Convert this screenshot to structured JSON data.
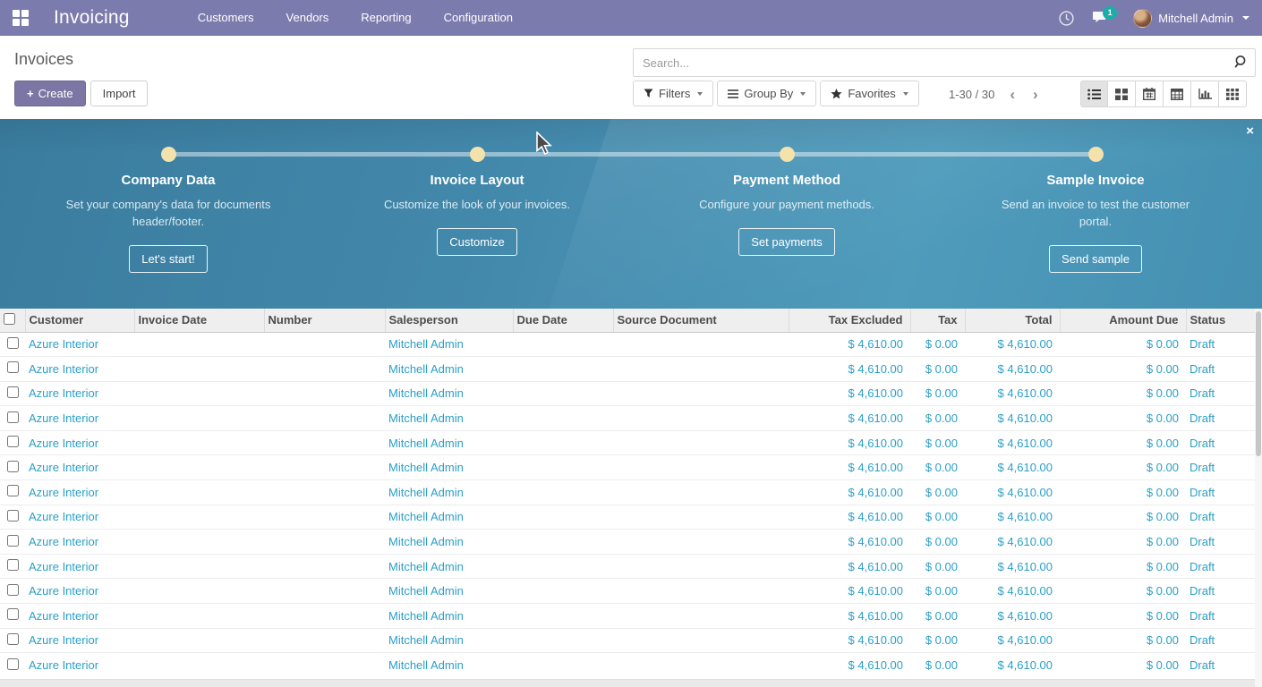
{
  "navbar": {
    "app_name": "Invoicing",
    "menu_items": [
      "Customers",
      "Vendors",
      "Reporting",
      "Configuration"
    ],
    "messages_badge": "1",
    "user_name": "Mitchell Admin",
    "colors": {
      "bg": "#7c7bad",
      "badge": "#17b0a8"
    }
  },
  "control_panel": {
    "breadcrumb": "Invoices",
    "create_label": "Create",
    "create_plus": "+",
    "import_label": "Import",
    "search_placeholder": "Search...",
    "filters_label": "Filters",
    "group_by_label": "Group By",
    "favorites_label": "Favorites",
    "pager_text": "1-30 / 30",
    "pager_prev": "‹",
    "pager_next": "›",
    "view_switcher": [
      "list",
      "kanban",
      "calendar",
      "pivot",
      "graph",
      "activity"
    ],
    "active_view": "list"
  },
  "onboarding": {
    "close_label": "×",
    "steps": [
      {
        "title": "Company Data",
        "description": "Set your company's data for documents header/footer.",
        "button": "Let's start!"
      },
      {
        "title": "Invoice Layout",
        "description": "Customize the look of your invoices.",
        "button": "Customize"
      },
      {
        "title": "Payment Method",
        "description": "Configure your payment methods.",
        "button": "Set payments"
      },
      {
        "title": "Sample Invoice",
        "description": "Send an invoice to test the customer portal.",
        "button": "Send sample"
      }
    ],
    "colors": {
      "bg": "#4389ac",
      "dot": "#f3e2ab"
    }
  },
  "table": {
    "columns": [
      {
        "key": "customer",
        "label": "Customer",
        "align": "left"
      },
      {
        "key": "invoice_date",
        "label": "Invoice Date",
        "align": "left"
      },
      {
        "key": "number",
        "label": "Number",
        "align": "left"
      },
      {
        "key": "salesperson",
        "label": "Salesperson",
        "align": "left"
      },
      {
        "key": "due_date",
        "label": "Due Date",
        "align": "left"
      },
      {
        "key": "source_document",
        "label": "Source Document",
        "align": "left"
      },
      {
        "key": "tax_excluded",
        "label": "Tax Excluded",
        "align": "right"
      },
      {
        "key": "tax",
        "label": "Tax",
        "align": "right"
      },
      {
        "key": "total",
        "label": "Total",
        "align": "right"
      },
      {
        "key": "amount_due",
        "label": "Amount Due",
        "align": "right"
      },
      {
        "key": "status",
        "label": "Status",
        "align": "left"
      }
    ],
    "rows": [
      {
        "customer": "Azure Interior",
        "invoice_date": "",
        "number": "",
        "salesperson": "Mitchell Admin",
        "due_date": "",
        "source_document": "",
        "tax_excluded": "$ 4,610.00",
        "tax": "$ 0.00",
        "total": "$ 4,610.00",
        "amount_due": "$ 0.00",
        "status": "Draft"
      },
      {
        "customer": "Azure Interior",
        "invoice_date": "",
        "number": "",
        "salesperson": "Mitchell Admin",
        "due_date": "",
        "source_document": "",
        "tax_excluded": "$ 4,610.00",
        "tax": "$ 0.00",
        "total": "$ 4,610.00",
        "amount_due": "$ 0.00",
        "status": "Draft"
      },
      {
        "customer": "Azure Interior",
        "invoice_date": "",
        "number": "",
        "salesperson": "Mitchell Admin",
        "due_date": "",
        "source_document": "",
        "tax_excluded": "$ 4,610.00",
        "tax": "$ 0.00",
        "total": "$ 4,610.00",
        "amount_due": "$ 0.00",
        "status": "Draft"
      },
      {
        "customer": "Azure Interior",
        "invoice_date": "",
        "number": "",
        "salesperson": "Mitchell Admin",
        "due_date": "",
        "source_document": "",
        "tax_excluded": "$ 4,610.00",
        "tax": "$ 0.00",
        "total": "$ 4,610.00",
        "amount_due": "$ 0.00",
        "status": "Draft"
      },
      {
        "customer": "Azure Interior",
        "invoice_date": "",
        "number": "",
        "salesperson": "Mitchell Admin",
        "due_date": "",
        "source_document": "",
        "tax_excluded": "$ 4,610.00",
        "tax": "$ 0.00",
        "total": "$ 4,610.00",
        "amount_due": "$ 0.00",
        "status": "Draft"
      },
      {
        "customer": "Azure Interior",
        "invoice_date": "",
        "number": "",
        "salesperson": "Mitchell Admin",
        "due_date": "",
        "source_document": "",
        "tax_excluded": "$ 4,610.00",
        "tax": "$ 0.00",
        "total": "$ 4,610.00",
        "amount_due": "$ 0.00",
        "status": "Draft"
      },
      {
        "customer": "Azure Interior",
        "invoice_date": "",
        "number": "",
        "salesperson": "Mitchell Admin",
        "due_date": "",
        "source_document": "",
        "tax_excluded": "$ 4,610.00",
        "tax": "$ 0.00",
        "total": "$ 4,610.00",
        "amount_due": "$ 0.00",
        "status": "Draft"
      },
      {
        "customer": "Azure Interior",
        "invoice_date": "",
        "number": "",
        "salesperson": "Mitchell Admin",
        "due_date": "",
        "source_document": "",
        "tax_excluded": "$ 4,610.00",
        "tax": "$ 0.00",
        "total": "$ 4,610.00",
        "amount_due": "$ 0.00",
        "status": "Draft"
      },
      {
        "customer": "Azure Interior",
        "invoice_date": "",
        "number": "",
        "salesperson": "Mitchell Admin",
        "due_date": "",
        "source_document": "",
        "tax_excluded": "$ 4,610.00",
        "tax": "$ 0.00",
        "total": "$ 4,610.00",
        "amount_due": "$ 0.00",
        "status": "Draft"
      },
      {
        "customer": "Azure Interior",
        "invoice_date": "",
        "number": "",
        "salesperson": "Mitchell Admin",
        "due_date": "",
        "source_document": "",
        "tax_excluded": "$ 4,610.00",
        "tax": "$ 0.00",
        "total": "$ 4,610.00",
        "amount_due": "$ 0.00",
        "status": "Draft"
      },
      {
        "customer": "Azure Interior",
        "invoice_date": "",
        "number": "",
        "salesperson": "Mitchell Admin",
        "due_date": "",
        "source_document": "",
        "tax_excluded": "$ 4,610.00",
        "tax": "$ 0.00",
        "total": "$ 4,610.00",
        "amount_due": "$ 0.00",
        "status": "Draft"
      },
      {
        "customer": "Azure Interior",
        "invoice_date": "",
        "number": "",
        "salesperson": "Mitchell Admin",
        "due_date": "",
        "source_document": "",
        "tax_excluded": "$ 4,610.00",
        "tax": "$ 0.00",
        "total": "$ 4,610.00",
        "amount_due": "$ 0.00",
        "status": "Draft"
      },
      {
        "customer": "Azure Interior",
        "invoice_date": "",
        "number": "",
        "salesperson": "Mitchell Admin",
        "due_date": "",
        "source_document": "",
        "tax_excluded": "$ 4,610.00",
        "tax": "$ 0.00",
        "total": "$ 4,610.00",
        "amount_due": "$ 0.00",
        "status": "Draft"
      },
      {
        "customer": "Azure Interior",
        "invoice_date": "",
        "number": "",
        "salesperson": "Mitchell Admin",
        "due_date": "",
        "source_document": "",
        "tax_excluded": "$ 4,610.00",
        "tax": "$ 0.00",
        "total": "$ 4,610.00",
        "amount_due": "$ 0.00",
        "status": "Draft"
      }
    ]
  }
}
